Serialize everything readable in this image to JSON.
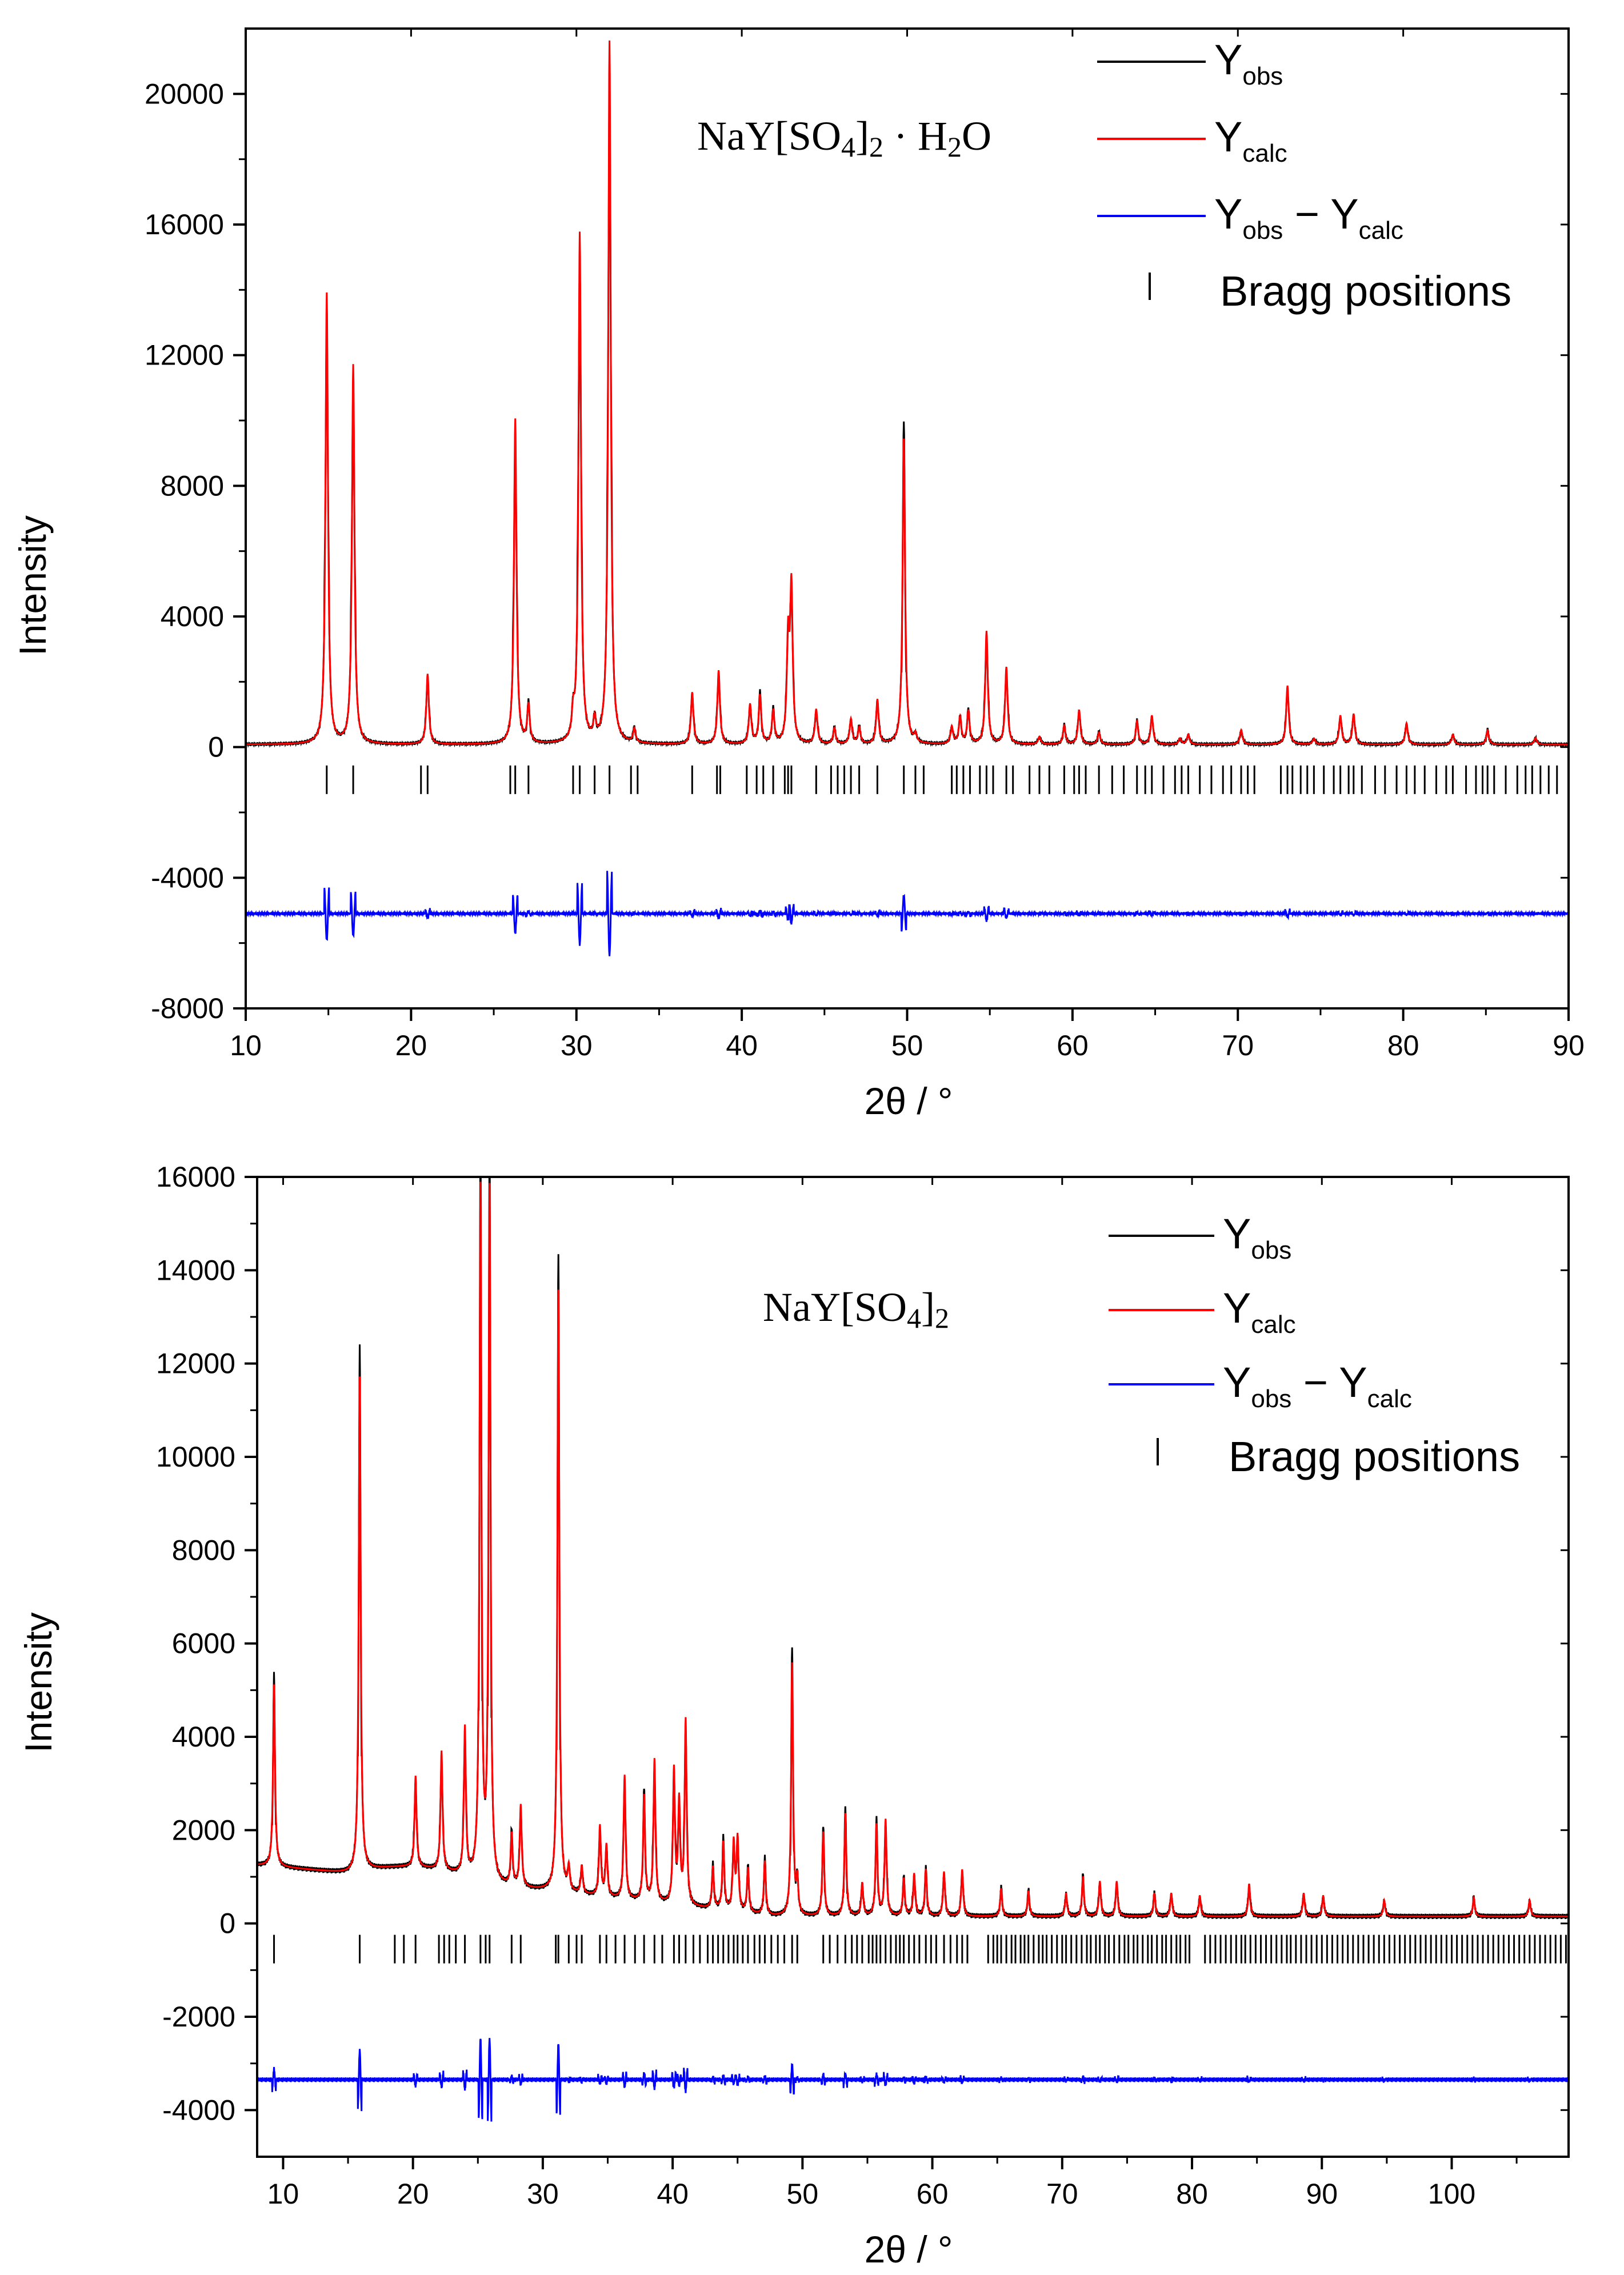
{
  "chart_data": [
    {
      "type": "line",
      "compound_label": {
        "main": "NaY[SO",
        "sub1": "4",
        "mid": "]",
        "sub2": "2",
        "rest": " · H",
        "sub3": "2",
        "tail": "O"
      },
      "xlabel": "2θ / °",
      "ylabel": "Intensity",
      "xlim": [
        10,
        90
      ],
      "ylim": [
        -8000,
        22000
      ],
      "xticks": [
        "10",
        "20",
        "30",
        "40",
        "50",
        "60",
        "70",
        "80",
        "90"
      ],
      "yticks": [
        "-8000",
        "-4000",
        "0",
        "4000",
        "8000",
        "12000",
        "16000",
        "20000"
      ],
      "legend": {
        "position": "top-right",
        "entries": [
          {
            "name": "Y",
            "sub": "obs",
            "color": "#000000"
          },
          {
            "name": "Y",
            "sub": "calc",
            "color": "#ff0000"
          },
          {
            "name": "Y",
            "sub": "obs",
            "minus": " − Y",
            "sub2": "calc",
            "color": "#0000ff"
          },
          {
            "name": "Bragg positions",
            "color": "#000000"
          }
        ]
      },
      "background": 80,
      "diff_offset": -5100,
      "bragg_level": -1000,
      "peaks": [
        [
          14.9,
          13800
        ],
        [
          16.5,
          11600
        ],
        [
          21.0,
          2150
        ],
        [
          26.3,
          9950
        ],
        [
          27.1,
          1150
        ],
        [
          29.8,
          700
        ],
        [
          30.2,
          15600
        ],
        [
          31.1,
          600
        ],
        [
          32.0,
          21500
        ],
        [
          33.5,
          420
        ],
        [
          37.0,
          1580
        ],
        [
          38.6,
          2250
        ],
        [
          40.5,
          1200
        ],
        [
          41.1,
          1480
        ],
        [
          41.9,
          1000
        ],
        [
          42.8,
          3100
        ],
        [
          43.0,
          4700
        ],
        [
          44.5,
          1050
        ],
        [
          45.6,
          480
        ],
        [
          46.6,
          760
        ],
        [
          47.1,
          500
        ],
        [
          48.2,
          1350
        ],
        [
          49.8,
          9350
        ],
        [
          50.5,
          250
        ],
        [
          52.7,
          520
        ],
        [
          53.2,
          800
        ],
        [
          53.7,
          1000
        ],
        [
          54.8,
          3450
        ],
        [
          56.0,
          2350
        ],
        [
          58.0,
          230
        ],
        [
          59.5,
          560
        ],
        [
          60.4,
          1050
        ],
        [
          61.6,
          360
        ],
        [
          63.9,
          700
        ],
        [
          64.8,
          880
        ],
        [
          66.5,
          180
        ],
        [
          67.0,
          300
        ],
        [
          70.2,
          440
        ],
        [
          73.0,
          1800
        ],
        [
          74.6,
          180
        ],
        [
          76.2,
          880
        ],
        [
          77.0,
          930
        ],
        [
          80.2,
          650
        ],
        [
          83.0,
          300
        ],
        [
          85.1,
          430
        ],
        [
          88.0,
          200
        ]
      ],
      "bragg_positions": [
        14.9,
        16.5,
        20.6,
        21.0,
        26.0,
        26.3,
        27.1,
        29.8,
        30.2,
        31.1,
        32.0,
        33.3,
        33.7,
        37.0,
        38.5,
        38.7,
        40.3,
        40.9,
        41.3,
        41.9,
        42.6,
        42.8,
        43.0,
        44.5,
        45.4,
        45.8,
        46.2,
        46.6,
        47.1,
        48.2,
        49.8,
        50.5,
        51.0,
        52.7,
        53.0,
        53.4,
        53.8,
        54.4,
        54.8,
        55.2,
        56.0,
        56.4,
        57.4,
        58.0,
        58.6,
        59.5,
        60.1,
        60.4,
        60.8,
        61.6,
        62.4,
        63.1,
        63.9,
        64.4,
        64.8,
        65.5,
        66.2,
        66.6,
        67.0,
        67.7,
        68.4,
        69.1,
        69.6,
        70.2,
        70.6,
        71.0,
        72.6,
        73.0,
        73.3,
        73.8,
        74.2,
        74.6,
        75.2,
        75.8,
        76.2,
        76.7,
        77.0,
        77.5,
        78.3,
        78.9,
        79.6,
        80.2,
        80.7,
        81.3,
        82.0,
        82.6,
        83.0,
        83.8,
        84.4,
        84.8,
        85.1,
        85.5,
        86.2,
        86.9,
        87.4,
        87.8,
        88.3,
        88.8,
        89.3
      ]
    },
    {
      "type": "line",
      "compound_label": {
        "main": "NaY[SO",
        "sub1": "4",
        "mid": "]",
        "sub2": "2",
        "rest": "",
        "sub3": "",
        "tail": ""
      },
      "xlabel": "2θ / °",
      "ylabel": "Intensity",
      "xlim": [
        8,
        109
      ],
      "ylim": [
        -5000,
        16000
      ],
      "xticks": [
        "10",
        "20",
        "30",
        "40",
        "50",
        "60",
        "70",
        "80",
        "90",
        "100"
      ],
      "yticks": [
        "-4000",
        "-2000",
        "0",
        "2000",
        "4000",
        "6000",
        "8000",
        "10000",
        "12000",
        "14000",
        "16000"
      ],
      "legend": {
        "position": "top-right",
        "entries": [
          {
            "name": "Y",
            "sub": "obs",
            "color": "#000000"
          },
          {
            "name": "Y",
            "sub": "calc",
            "color": "#ff0000"
          },
          {
            "name": "Y",
            "sub": "obs",
            "minus": " − Y",
            "sub2": "calc",
            "color": "#0000ff"
          },
          {
            "name": "Bragg positions",
            "color": "#000000"
          }
        ]
      },
      "background": 1250,
      "diff_offset": -3350,
      "bragg_level": -550,
      "peaks": [
        [
          9.3,
          3900
        ],
        [
          15.9,
          10600
        ],
        [
          20.2,
          1950
        ],
        [
          22.2,
          2550
        ],
        [
          24.0,
          3150
        ],
        [
          25.2,
          14750
        ],
        [
          25.9,
          14800
        ],
        [
          27.6,
          1100
        ],
        [
          28.3,
          1750
        ],
        [
          31.2,
          12900
        ],
        [
          32.0,
          500
        ],
        [
          33.0,
          600
        ],
        [
          34.4,
          1500
        ],
        [
          34.9,
          1100
        ],
        [
          36.3,
          2650
        ],
        [
          37.8,
          2250
        ],
        [
          38.6,
          3050
        ],
        [
          40.1,
          2850
        ],
        [
          40.5,
          2150
        ],
        [
          41.0,
          3950
        ],
        [
          43.1,
          900
        ],
        [
          43.9,
          1450
        ],
        [
          44.7,
          1450
        ],
        [
          45.0,
          1550
        ],
        [
          45.8,
          950
        ],
        [
          47.1,
          1150
        ],
        [
          49.2,
          5400
        ],
        [
          49.6,
          700
        ],
        [
          51.6,
          1800
        ],
        [
          53.3,
          2200
        ],
        [
          54.6,
          700
        ],
        [
          55.7,
          1950
        ],
        [
          56.4,
          2050
        ],
        [
          57.8,
          800
        ],
        [
          58.6,
          900
        ],
        [
          59.5,
          1000
        ],
        [
          60.9,
          950
        ],
        [
          62.3,
          1000
        ],
        [
          65.3,
          600
        ],
        [
          67.4,
          550
        ],
        [
          70.3,
          500
        ],
        [
          71.6,
          850
        ],
        [
          72.9,
          750
        ],
        [
          74.2,
          750
        ],
        [
          77.1,
          500
        ],
        [
          78.4,
          500
        ],
        [
          80.6,
          450
        ],
        [
          84.4,
          700
        ],
        [
          88.6,
          500
        ],
        [
          90.1,
          450
        ],
        [
          94.8,
          350
        ],
        [
          101.7,
          400
        ],
        [
          106.0,
          350
        ]
      ],
      "bragg_positions": [
        9.3,
        15.9,
        18.6,
        19.3,
        20.2,
        22.0,
        22.4,
        22.8,
        23.3,
        24.0,
        25.2,
        25.6,
        25.9,
        27.6,
        28.3,
        31.0,
        31.2,
        32.0,
        32.6,
        33.0,
        34.4,
        34.9,
        35.6,
        36.3,
        37.1,
        37.8,
        38.6,
        39.2,
        40.1,
        40.5,
        41.0,
        41.6,
        42.1,
        42.7,
        43.1,
        43.5,
        43.9,
        44.3,
        44.7,
        45.0,
        45.4,
        45.8,
        46.3,
        46.7,
        47.1,
        47.6,
        48.1,
        48.6,
        49.2,
        49.6,
        51.6,
        52.1,
        52.7,
        53.3,
        53.8,
        54.2,
        54.6,
        55.1,
        55.4,
        55.7,
        56.0,
        56.4,
        56.8,
        57.2,
        57.5,
        57.8,
        58.2,
        58.6,
        59.0,
        59.5,
        59.9,
        60.3,
        60.9,
        61.4,
        61.9,
        62.3,
        62.7,
        64.3,
        64.7,
        65.0,
        65.3,
        65.7,
        66.1,
        66.4,
        66.8,
        67.1,
        67.4,
        67.8,
        68.2,
        68.5,
        68.8,
        69.2,
        69.6,
        70.0,
        70.3,
        70.7,
        71.1,
        71.5,
        71.9,
        72.2,
        72.6,
        72.9,
        73.3,
        73.6,
        74.0,
        74.4,
        74.8,
        75.1,
        75.5,
        75.8,
        76.2,
        76.6,
        76.9,
        77.3,
        77.7,
        78.0,
        78.4,
        78.8,
        79.1,
        79.5,
        79.8,
        81.0,
        81.4,
        81.8,
        82.2,
        82.6,
        83.0,
        83.4,
        83.8,
        84.1,
        84.5,
        84.9,
        85.3,
        85.7,
        86.1,
        86.5,
        86.9,
        87.3,
        87.6,
        88.0,
        88.4,
        88.8,
        89.2,
        89.6,
        90.0,
        90.4,
        90.8,
        91.2,
        91.6,
        92.0,
        92.4,
        92.8,
        93.2,
        93.6,
        94.0,
        94.4,
        94.8,
        95.2,
        95.6,
        96.0,
        96.4,
        96.8,
        97.2,
        97.6,
        98.0,
        98.4,
        98.8,
        99.2,
        99.6,
        100.0,
        100.4,
        100.8,
        101.2,
        101.6,
        102.0,
        102.4,
        102.8,
        103.2,
        103.6,
        104.0,
        104.4,
        104.8,
        105.2,
        105.6,
        106.0,
        106.4,
        106.8,
        107.2,
        107.6,
        108.0,
        108.4,
        108.8
      ]
    }
  ]
}
